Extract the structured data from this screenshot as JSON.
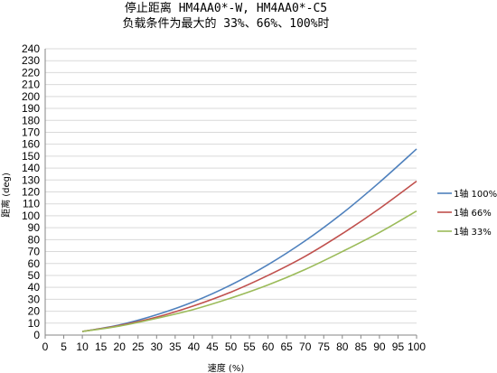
{
  "chart_data": {
    "type": "line",
    "title": "停止距离 HM4AA0*-W, HM4AA0*-C5",
    "subtitle": "负载条件为最大的 33%、66%、100%时",
    "xlabel": "速度 (%)",
    "ylabel": "距离 (deg)",
    "xlim": [
      0,
      100
    ],
    "ylim": [
      0,
      240
    ],
    "xticks": [
      0,
      5,
      10,
      15,
      20,
      25,
      30,
      35,
      40,
      45,
      50,
      55,
      60,
      65,
      70,
      75,
      80,
      85,
      90,
      95,
      100
    ],
    "yticks": [
      0,
      10,
      20,
      30,
      40,
      50,
      60,
      70,
      80,
      90,
      100,
      110,
      120,
      130,
      140,
      150,
      160,
      170,
      180,
      190,
      200,
      210,
      220,
      230,
      240
    ],
    "grid": true,
    "legend_position": "right",
    "series": [
      {
        "name": "1轴 100%",
        "color": "#4f81bd",
        "x": [
          10,
          20,
          30,
          40,
          50,
          60,
          70,
          80,
          90,
          100
        ],
        "y": [
          3,
          8.5,
          17,
          28,
          42,
          59,
          79,
          102,
          128,
          156
        ]
      },
      {
        "name": "1轴 66%",
        "color": "#c0504d",
        "x": [
          10,
          20,
          30,
          40,
          50,
          60,
          70,
          80,
          90,
          100
        ],
        "y": [
          3,
          8,
          15,
          24.5,
          36,
          50,
          66,
          85,
          106,
          129
        ]
      },
      {
        "name": "1轴 33%",
        "color": "#9bbb59",
        "x": [
          10,
          20,
          30,
          40,
          50,
          60,
          70,
          80,
          90,
          100
        ],
        "y": [
          3,
          7.5,
          14,
          21.5,
          31,
          42,
          55,
          70,
          86,
          104
        ]
      }
    ]
  }
}
